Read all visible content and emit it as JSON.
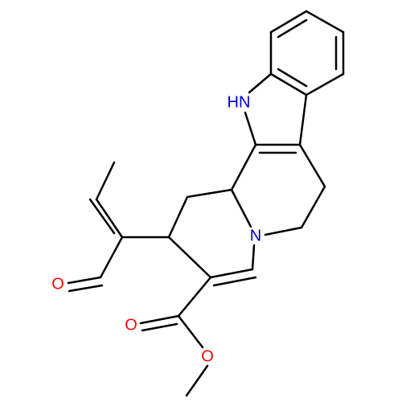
{
  "atoms": {
    "labels": [
      "HN",
      "N",
      "O",
      "O",
      "O"
    ]
  }
}
